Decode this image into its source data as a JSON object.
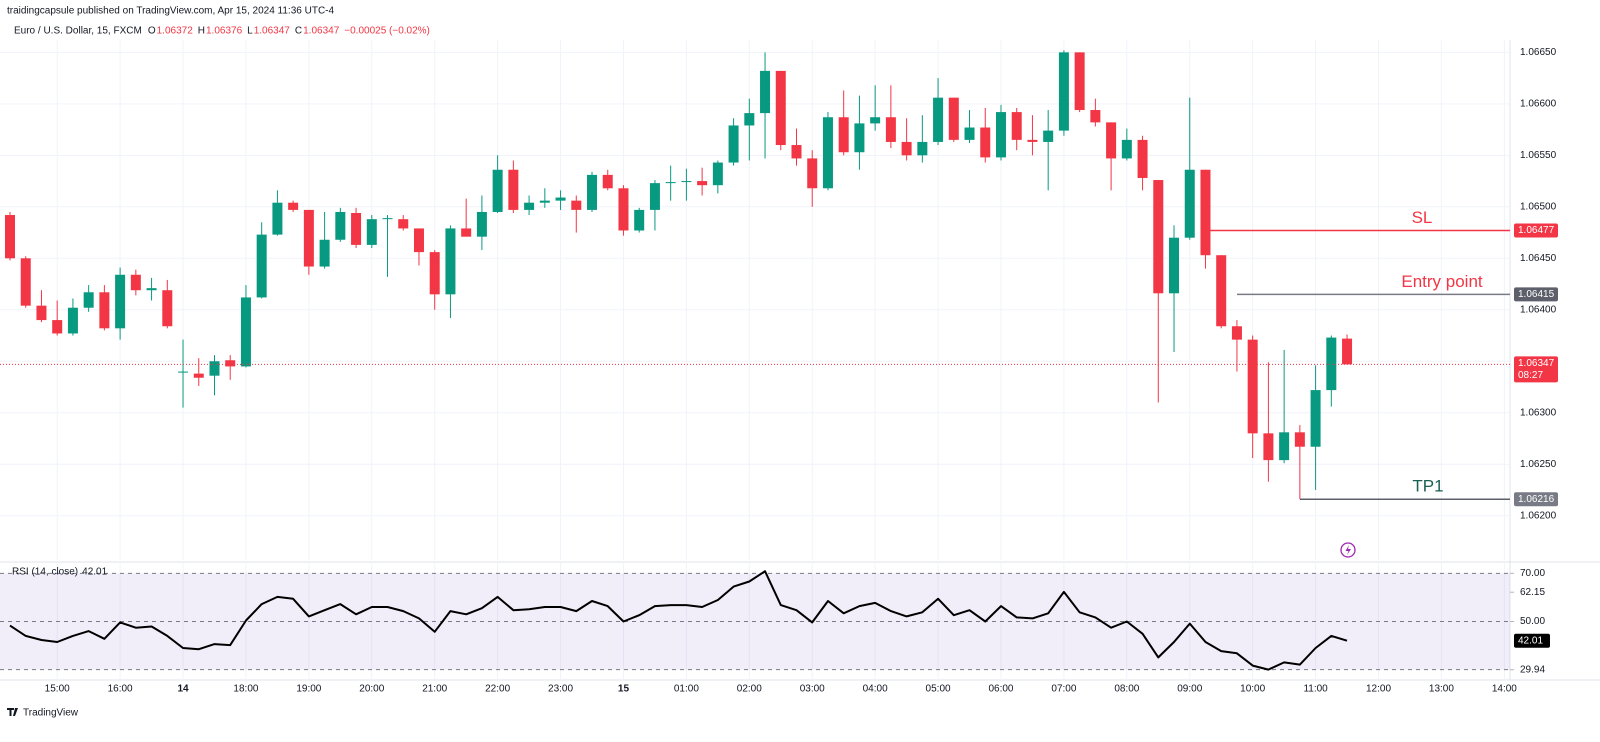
{
  "header": {
    "publisher_line": "traidingcapsule published on TradingView.com, Apr 15, 2024 11:36 UTC-4",
    "symbol": "Euro / U.S. Dollar, 15, FXCM",
    "ohlc": [
      {
        "key": "O",
        "value": "1.06372"
      },
      {
        "key": "H",
        "value": "1.06376"
      },
      {
        "key": "L",
        "value": "1.06347"
      },
      {
        "key": "C",
        "value": "1.06347"
      }
    ],
    "change": "−0.00025 (−0.02%)"
  },
  "footer": {
    "brand": "TradingView"
  },
  "chart_data": [
    {
      "type": "candlestick",
      "up_color": "#089981",
      "down_color": "#f23645",
      "grid": true,
      "categories": [
        null,
        null,
        null,
        "15:00",
        null,
        null,
        null,
        "16:00",
        null,
        null,
        null,
        "14",
        null,
        null,
        null,
        "18:00",
        null,
        null,
        null,
        "19:00",
        null,
        null,
        null,
        "20:00",
        null,
        null,
        null,
        "21:00",
        null,
        null,
        null,
        "22:00",
        null,
        null,
        null,
        "23:00",
        null,
        null,
        null,
        "15",
        null,
        null,
        null,
        "01:00",
        null,
        null,
        null,
        "02:00",
        null,
        null,
        null,
        "03:00",
        null,
        null,
        null,
        "04:00",
        null,
        null,
        null,
        "05:00",
        null,
        null,
        null,
        "06:00",
        null,
        null,
        null,
        "07:00",
        null,
        null,
        null,
        "08:00",
        null,
        null,
        null,
        "09:00",
        null,
        null,
        null,
        "10:00",
        null,
        null,
        null,
        "11:00",
        null,
        null,
        null,
        "12:00",
        null,
        null,
        null,
        "13:00",
        null,
        null,
        null,
        "14:00"
      ],
      "open": [
        1.06492,
        1.0645,
        1.06404,
        1.0639,
        1.06377,
        1.06402,
        1.06417,
        1.06382,
        1.06434,
        1.06419,
        1.06419,
        1.06339,
        1.06338,
        1.06336,
        1.06351,
        1.06345,
        1.06412,
        1.06473,
        1.06504,
        1.06497,
        1.06442,
        1.06468,
        1.06494,
        1.06463,
        1.06488,
        1.06488,
        1.06479,
        1.06456,
        1.06415,
        1.06479,
        1.06471,
        1.06495,
        1.06536,
        1.06497,
        1.06504,
        1.06506,
        1.06506,
        1.06497,
        1.06531,
        1.06518,
        1.06477,
        1.06497,
        1.06523,
        1.06524,
        1.06525,
        1.06521,
        1.06543,
        1.06579,
        1.06591,
        1.06632,
        1.0656,
        1.06547,
        1.06518,
        1.06587,
        1.06553,
        1.06581,
        1.06587,
        1.06563,
        1.0655,
        1.06563,
        1.06606,
        1.06565,
        1.06577,
        1.06548,
        1.06592,
        1.06565,
        1.06563,
        1.06574,
        1.0665,
        1.06594,
        1.06582,
        1.06547,
        1.06565,
        1.06526,
        1.06416,
        1.0647,
        1.06536,
        1.06453,
        1.06384,
        1.06371,
        1.0628,
        1.06254,
        1.06281,
        1.06267,
        1.06322,
        1.06372,
        null,
        null,
        null,
        null,
        null,
        null,
        null,
        null,
        null,
        null
      ],
      "high": [
        1.06495,
        1.06452,
        1.06419,
        1.06409,
        1.06411,
        1.06424,
        1.06424,
        1.06441,
        1.06439,
        1.06431,
        1.06429,
        1.06371,
        1.06353,
        1.06356,
        1.06356,
        1.06424,
        1.06485,
        1.06516,
        1.06506,
        1.06497,
        1.06495,
        1.06499,
        1.06499,
        1.06492,
        1.06492,
        1.06492,
        1.06479,
        1.06458,
        1.06482,
        1.06508,
        1.06511,
        1.0655,
        1.06545,
        1.06511,
        1.06518,
        1.06516,
        1.06511,
        1.06534,
        1.06536,
        1.06521,
        1.06499,
        1.06526,
        1.0654,
        1.06537,
        1.06538,
        1.06545,
        1.06586,
        1.06605,
        1.0665,
        1.06632,
        1.06576,
        1.06555,
        1.06592,
        1.06613,
        1.06608,
        1.06618,
        1.06618,
        1.06586,
        1.06589,
        1.06625,
        1.06606,
        1.06594,
        1.06596,
        1.06599,
        1.06596,
        1.06589,
        1.06594,
        1.06652,
        1.0665,
        1.06605,
        1.06582,
        1.06576,
        1.06569,
        1.06526,
        1.06482,
        1.06606,
        1.06536,
        1.06453,
        1.0639,
        1.06375,
        1.06349,
        1.06361,
        1.06288,
        1.06346,
        1.06375,
        1.06376,
        null,
        null,
        null,
        null,
        null,
        null,
        null,
        null,
        null,
        null
      ],
      "low": [
        1.06448,
        1.06402,
        1.06388,
        1.06375,
        1.06375,
        1.06398,
        1.0638,
        1.06371,
        1.06414,
        1.06409,
        1.06382,
        1.06305,
        1.06326,
        1.06317,
        1.06332,
        1.06344,
        1.06411,
        1.06472,
        1.06495,
        1.06434,
        1.0644,
        1.06466,
        1.0646,
        1.0646,
        1.06432,
        1.06477,
        1.06443,
        1.064,
        1.06392,
        1.06471,
        1.06458,
        1.06494,
        1.06494,
        1.06492,
        1.06499,
        1.06497,
        1.06475,
        1.06495,
        1.06516,
        1.06472,
        1.06475,
        1.06477,
        1.06506,
        1.06506,
        1.06511,
        1.06513,
        1.0654,
        1.06545,
        1.06547,
        1.06555,
        1.0654,
        1.065,
        1.06516,
        1.0655,
        1.06536,
        1.06574,
        1.06557,
        1.06545,
        1.06543,
        1.0656,
        1.06563,
        1.06562,
        1.06543,
        1.06545,
        1.06555,
        1.0655,
        1.06516,
        1.06569,
        1.06592,
        1.06578,
        1.06516,
        1.06545,
        1.06516,
        1.0631,
        1.06359,
        1.06468,
        1.0644,
        1.06382,
        1.0634,
        1.06256,
        1.06233,
        1.06251,
        1.06216,
        1.06225,
        1.06306,
        1.06347,
        null,
        null,
        null,
        null,
        null,
        null,
        null,
        null,
        null,
        null
      ],
      "close": [
        1.0645,
        1.06404,
        1.0639,
        1.06377,
        1.06402,
        1.06417,
        1.06382,
        1.06434,
        1.06419,
        1.06421,
        1.06384,
        1.0634,
        1.06334,
        1.0635,
        1.06345,
        1.06412,
        1.06473,
        1.06504,
        1.06497,
        1.06442,
        1.06468,
        1.06495,
        1.06463,
        1.06488,
        1.06489,
        1.06479,
        1.06456,
        1.06415,
        1.06479,
        1.06471,
        1.06495,
        1.06536,
        1.06497,
        1.06504,
        1.06506,
        1.06509,
        1.06497,
        1.06531,
        1.06518,
        1.06477,
        1.06497,
        1.06523,
        1.06524,
        1.06525,
        1.06521,
        1.06543,
        1.06579,
        1.06591,
        1.06632,
        1.0656,
        1.06547,
        1.06518,
        1.06587,
        1.06553,
        1.06581,
        1.06587,
        1.06563,
        1.0655,
        1.06563,
        1.06606,
        1.06565,
        1.06577,
        1.06548,
        1.06592,
        1.06565,
        1.06563,
        1.06574,
        1.0665,
        1.06594,
        1.06582,
        1.06547,
        1.06565,
        1.06528,
        1.06416,
        1.0647,
        1.06536,
        1.06453,
        1.06384,
        1.06371,
        1.0628,
        1.06254,
        1.06281,
        1.06267,
        1.06322,
        1.06373,
        1.06347,
        null,
        null,
        null,
        null,
        null,
        null,
        null,
        null,
        null,
        null
      ],
      "ylim": [
        1.06157,
        1.06662
      ],
      "yticks": [
        {
          "value": 1.062,
          "label": "1.06200"
        },
        {
          "value": 1.0625,
          "label": "1.06250"
        },
        {
          "value": 1.063,
          "label": "1.06300"
        },
        {
          "value": 1.0635,
          "label": "1.06350"
        },
        {
          "value": 1.064,
          "label": "1.06400"
        },
        {
          "value": 1.0645,
          "label": "1.06450"
        },
        {
          "value": 1.065,
          "label": "1.06500"
        },
        {
          "value": 1.0655,
          "label": "1.06550"
        },
        {
          "value": 1.066,
          "label": "1.06600"
        },
        {
          "value": 1.0665,
          "label": "1.06650"
        }
      ],
      "last_price_label": "1.06347",
      "countdown": "08:27",
      "levels": [
        {
          "label": "SL",
          "value": 1.06477,
          "value_label": "1.06477",
          "line_color": "#f23645",
          "text_color": "#f23645",
          "box_color": "#f23645"
        },
        {
          "label": "Entry point",
          "value": 1.06415,
          "value_label": "1.06415",
          "line_color": "#787b86",
          "text_color": "#f23645",
          "box_color": "#5d606b"
        },
        {
          "label": "TP1",
          "value": 1.06216,
          "value_label": "1.06216",
          "line_color": "#5d606b",
          "text_color": "#1b5e52",
          "box_color": "#787b86"
        }
      ]
    },
    {
      "type": "line",
      "title": "RSI (14, close)",
      "legend_value": "42.01",
      "color": "#000000",
      "band_color": "#7e57c2",
      "values": [
        48.3,
        44,
        42.3,
        41.5,
        44,
        46,
        42.8,
        49.6,
        47.4,
        47.9,
        44,
        39,
        38.5,
        40.6,
        40.2,
        50.4,
        57.2,
        60.2,
        59.4,
        52.1,
        54.7,
        57.2,
        53,
        56,
        56,
        54.3,
        51.3,
        45.7,
        54.3,
        53,
        55.5,
        60.2,
        54.7,
        55.1,
        56,
        56,
        54.3,
        58.5,
        56.4,
        50,
        52.6,
        56.4,
        56.8,
        56.8,
        56,
        58.9,
        64.5,
        66.6,
        70.9,
        56.8,
        54.7,
        49.6,
        58.5,
        53.4,
        56.4,
        57.7,
        54.3,
        52.1,
        53.8,
        59.4,
        52.6,
        54.7,
        50,
        56.4,
        51.7,
        51.3,
        53.4,
        62.3,
        53.8,
        51.7,
        47.4,
        50,
        44.9,
        35.1,
        41.5,
        49.1,
        41.5,
        37.7,
        36.8,
        31.7,
        30,
        33,
        32.1,
        39,
        44,
        42.01,
        null,
        null,
        null,
        null,
        null,
        null,
        null,
        null,
        null,
        null
      ],
      "ylim": [
        25.7,
        74.7
      ],
      "yticks": [
        {
          "value": 70,
          "label": "70.00"
        },
        62.15,
        {
          "value": 50,
          "label": "50.00"
        },
        29.94
      ],
      "bands": [
        70,
        50,
        30
      ]
    }
  ]
}
